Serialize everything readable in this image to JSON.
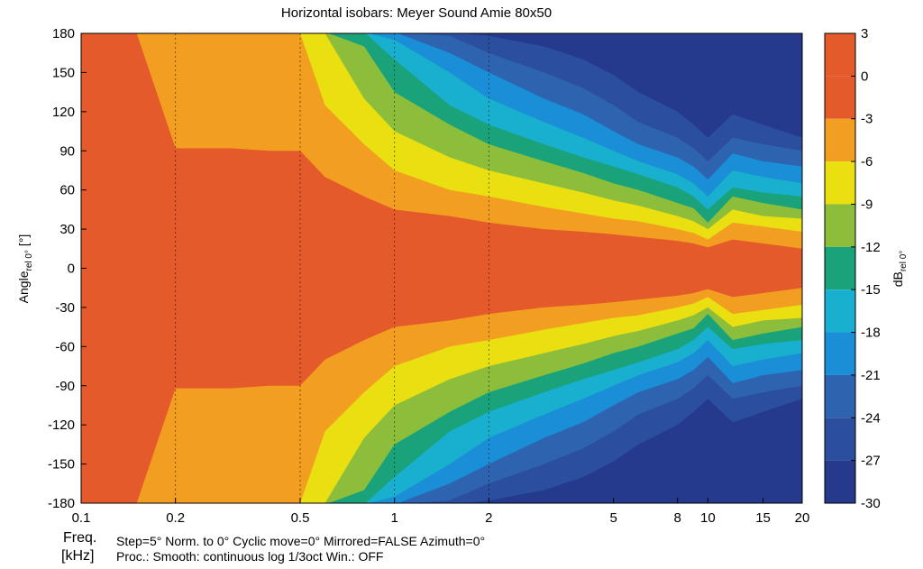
{
  "chart_data": {
    "type": "heatmap",
    "title": "Horizontal isobars: Meyer Sound  Amie  80x50",
    "xlabel": "Freq.",
    "xunit": "[kHz]",
    "ylabel_main": "Angle",
    "ylabel_sub": "rel 0°",
    "ylabel_unit": "[°]",
    "colorbar_label_main": "dB",
    "colorbar_label_sub": "rel 0°",
    "x_scale": "log",
    "xlim": [
      0.1,
      20
    ],
    "ylim": [
      -180,
      180
    ],
    "x_ticks": [
      {
        "value": 0.1,
        "label": "0.1"
      },
      {
        "value": 0.2,
        "label": "0.2"
      },
      {
        "value": 0.5,
        "label": "0.5"
      },
      {
        "value": 1,
        "label": "1"
      },
      {
        "value": 2,
        "label": "2"
      },
      {
        "value": 5,
        "label": "5"
      },
      {
        "value": 8,
        "label": "8"
      },
      {
        "value": 10,
        "label": "10"
      },
      {
        "value": 15,
        "label": "15"
      },
      {
        "value": 20,
        "label": "20"
      }
    ],
    "y_ticks": [
      {
        "value": 180,
        "label": "180"
      },
      {
        "value": 150,
        "label": "150"
      },
      {
        "value": 120,
        "label": "120"
      },
      {
        "value": 90,
        "label": "90"
      },
      {
        "value": 60,
        "label": "60"
      },
      {
        "value": 30,
        "label": "30"
      },
      {
        "value": 0,
        "label": "0"
      },
      {
        "value": -30,
        "label": "-30"
      },
      {
        "value": -60,
        "label": "-60"
      },
      {
        "value": -90,
        "label": "-90"
      },
      {
        "value": -120,
        "label": "-120"
      },
      {
        "value": -150,
        "label": "-150"
      },
      {
        "value": -180,
        "label": "-180"
      }
    ],
    "dashed_gridlines_x": [
      0.2,
      0.5,
      1,
      2
    ],
    "color_levels": [
      {
        "min": 0,
        "max": 3,
        "color": "#e55a2b"
      },
      {
        "min": -3,
        "max": 0,
        "color": "#e55a2b"
      },
      {
        "min": -6,
        "max": -3,
        "color": "#f29e21"
      },
      {
        "min": -9,
        "max": -6,
        "color": "#eadf10"
      },
      {
        "min": -12,
        "max": -9,
        "color": "#8cbe3c"
      },
      {
        "min": -15,
        "max": -12,
        "color": "#1aa37a"
      },
      {
        "min": -18,
        "max": -15,
        "color": "#19afcf"
      },
      {
        "min": -21,
        "max": -18,
        "color": "#1a8ed6"
      },
      {
        "min": -24,
        "max": -21,
        "color": "#2e63b0"
      },
      {
        "min": -27,
        "max": -24,
        "color": "#2b4f9e"
      },
      {
        "min": -30,
        "max": -27,
        "color": "#253a8c"
      }
    ],
    "colorbar_ticks": [
      {
        "value": 3,
        "label": "3"
      },
      {
        "value": 0,
        "label": "0"
      },
      {
        "value": -3,
        "label": "-3"
      },
      {
        "value": -6,
        "label": "-6"
      },
      {
        "value": -9,
        "label": "-9"
      },
      {
        "value": -12,
        "label": "-12"
      },
      {
        "value": -15,
        "label": "-15"
      },
      {
        "value": -18,
        "label": "-18"
      },
      {
        "value": -21,
        "label": "-21"
      },
      {
        "value": -24,
        "label": "-24"
      },
      {
        "value": -27,
        "label": "-27"
      },
      {
        "value": -30,
        "label": "-30"
      }
    ],
    "contour_half_angles_deg": {
      "description": "Approximate angle (deg) at which level is reached, per frequency (symmetric)",
      "freq_khz": [
        0.1,
        0.15,
        0.2,
        0.3,
        0.4,
        0.5,
        0.6,
        0.8,
        1,
        1.5,
        2,
        3,
        4,
        5,
        6,
        8,
        9,
        10,
        12,
        15,
        20
      ],
      "level_-3": [
        181,
        181,
        92,
        92,
        90,
        90,
        70,
        55,
        45,
        40,
        35,
        30,
        28,
        26,
        24,
        21,
        19,
        16,
        22,
        19,
        15
      ],
      "level_-6": [
        181,
        181,
        181,
        181,
        181,
        180,
        125,
        95,
        75,
        60,
        55,
        47,
        42,
        38,
        36,
        30,
        27,
        22,
        35,
        32,
        28
      ],
      "level_-9": [
        181,
        181,
        181,
        181,
        181,
        181,
        180,
        130,
        105,
        85,
        75,
        65,
        58,
        52,
        48,
        40,
        36,
        30,
        45,
        40,
        38
      ],
      "level_-12": [
        181,
        181,
        181,
        181,
        181,
        181,
        181,
        170,
        135,
        110,
        95,
        82,
        73,
        65,
        60,
        50,
        46,
        35,
        55,
        50,
        45
      ],
      "level_-15": [
        181,
        181,
        181,
        181,
        181,
        181,
        181,
        181,
        160,
        125,
        110,
        95,
        85,
        78,
        72,
        62,
        55,
        45,
        62,
        58,
        55
      ],
      "level_-18": [
        181,
        181,
        181,
        181,
        181,
        181,
        181,
        181,
        175,
        150,
        130,
        112,
        100,
        90,
        82,
        72,
        65,
        55,
        75,
        70,
        65
      ],
      "level_-21": [
        181,
        181,
        181,
        181,
        181,
        181,
        181,
        181,
        181,
        165,
        150,
        130,
        118,
        105,
        95,
        85,
        78,
        68,
        88,
        82,
        78
      ],
      "level_-24": [
        181,
        181,
        181,
        181,
        181,
        181,
        181,
        181,
        181,
        178,
        165,
        150,
        138,
        125,
        112,
        100,
        92,
        82,
        100,
        95,
        90
      ],
      "level_-27": [
        181,
        181,
        181,
        181,
        181,
        181,
        181,
        181,
        181,
        181,
        178,
        170,
        160,
        148,
        135,
        120,
        110,
        100,
        118,
        110,
        100
      ]
    },
    "footer": {
      "line1": "Step=5°   Norm. to 0°   Cyclic move=0°   Mirrored=FALSE   Azimuth=0°",
      "line2": "Proc.: Smooth: continuous log 1/3oct   Win.: OFF"
    }
  }
}
